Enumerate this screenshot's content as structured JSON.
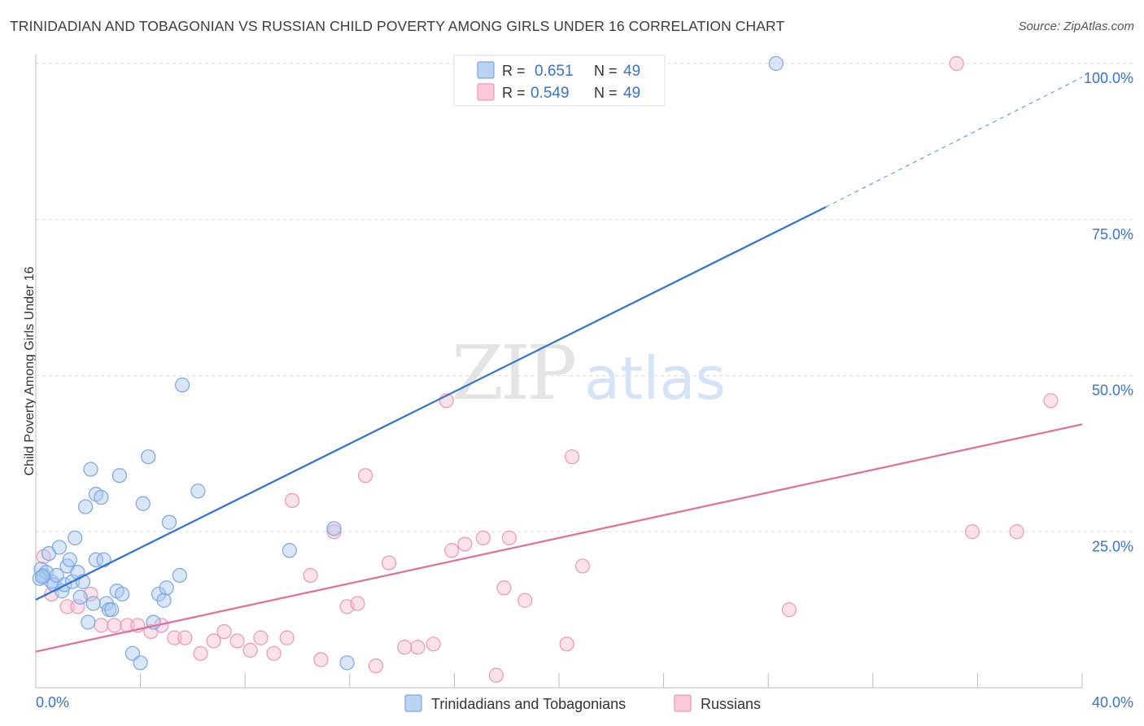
{
  "title": "TRINIDADIAN AND TOBAGONIAN VS RUSSIAN CHILD POVERTY AMONG GIRLS UNDER 16 CORRELATION CHART",
  "source": "Source: ZipAtlas.com",
  "watermark": {
    "zip": "ZIP",
    "atlas": "atlas"
  },
  "colors": {
    "blue_fill": "#a9c8f0",
    "blue_stroke": "#7aa6e0",
    "blue_line": "#2f72d0",
    "pink_fill": "#f6bcd0",
    "pink_stroke": "#ee96b6",
    "pink_line": "#e46c98",
    "tick_label": "#3a74c8",
    "grid": "#dddddd"
  },
  "legend": {
    "r_label": "R =",
    "n_label": "N =",
    "series": [
      {
        "r": "0.651",
        "n": "49"
      },
      {
        "r": "0.549",
        "n": "49"
      }
    ]
  },
  "chart_data": {
    "type": "scatter",
    "title": "TRINIDADIAN AND TOBAGONIAN VS RUSSIAN CHILD POVERTY AMONG GIRLS UNDER 16 CORRELATION CHART",
    "xlabel": "",
    "ylabel": "Child Poverty Among Girls Under 16",
    "xlim": [
      0,
      40
    ],
    "ylim": [
      0,
      100
    ],
    "x_tick_labels": [
      "0.0%",
      "40.0%"
    ],
    "y_ticks": [
      25,
      50,
      75,
      100
    ],
    "y_tick_labels": [
      "25.0%",
      "50.0%",
      "75.0%",
      "100.0%"
    ],
    "grid": true,
    "legend_position": "bottom",
    "series": [
      {
        "name": "Trinidadians and Tobagonians",
        "trend": {
          "x0": 0,
          "y0": 14.1,
          "x1": 30.2,
          "y1": 77.0,
          "dash_to_x": 40,
          "dash_to_y": 97.8
        },
        "points": [
          [
            0.2,
            19
          ],
          [
            0.3,
            18
          ],
          [
            0.4,
            18.5
          ],
          [
            0.5,
            21.5
          ],
          [
            0.6,
            17
          ],
          [
            0.7,
            16.5
          ],
          [
            0.8,
            18
          ],
          [
            0.9,
            22.5
          ],
          [
            1.0,
            15.5
          ],
          [
            1.1,
            16.5
          ],
          [
            1.2,
            19.5
          ],
          [
            1.3,
            20.5
          ],
          [
            1.4,
            17
          ],
          [
            1.5,
            24
          ],
          [
            1.6,
            18.5
          ],
          [
            1.7,
            14.5
          ],
          [
            1.8,
            17
          ],
          [
            1.9,
            29
          ],
          [
            2.0,
            10.5
          ],
          [
            2.1,
            35
          ],
          [
            2.2,
            13.5
          ],
          [
            2.3,
            31
          ],
          [
            2.3,
            20.5
          ],
          [
            2.5,
            30.5
          ],
          [
            2.6,
            20.5
          ],
          [
            2.7,
            13.5
          ],
          [
            2.8,
            12.5
          ],
          [
            2.9,
            12.5
          ],
          [
            3.1,
            15.5
          ],
          [
            3.2,
            34
          ],
          [
            3.3,
            15
          ],
          [
            3.7,
            5.5
          ],
          [
            4.0,
            4
          ],
          [
            4.1,
            29.5
          ],
          [
            4.3,
            37
          ],
          [
            4.5,
            10.5
          ],
          [
            4.7,
            15
          ],
          [
            4.9,
            14
          ],
          [
            5.0,
            16
          ],
          [
            5.1,
            26.5
          ],
          [
            5.5,
            18
          ],
          [
            5.6,
            48.5
          ],
          [
            6.2,
            31.5
          ],
          [
            9.7,
            22
          ],
          [
            11.4,
            25.5
          ],
          [
            11.9,
            4
          ],
          [
            28.3,
            100
          ],
          [
            0.15,
            17.5
          ],
          [
            0.25,
            17.8
          ]
        ]
      },
      {
        "name": "Russians",
        "trend": {
          "x0": 0,
          "y0": 5.8,
          "x1": 40,
          "y1": 42.2
        },
        "points": [
          [
            0.3,
            21
          ],
          [
            0.6,
            15
          ],
          [
            1.2,
            13
          ],
          [
            1.6,
            13
          ],
          [
            2.1,
            15
          ],
          [
            2.5,
            10
          ],
          [
            3.0,
            10
          ],
          [
            3.5,
            10
          ],
          [
            3.9,
            10
          ],
          [
            4.4,
            9
          ],
          [
            4.8,
            10
          ],
          [
            5.3,
            8
          ],
          [
            5.7,
            8
          ],
          [
            6.3,
            5.5
          ],
          [
            6.8,
            7.5
          ],
          [
            7.2,
            9
          ],
          [
            7.7,
            7.5
          ],
          [
            8.2,
            6
          ],
          [
            8.6,
            8
          ],
          [
            9.1,
            5.5
          ],
          [
            9.6,
            8
          ],
          [
            9.8,
            30
          ],
          [
            10.5,
            18
          ],
          [
            10.9,
            4.5
          ],
          [
            11.4,
            25
          ],
          [
            11.9,
            13
          ],
          [
            12.3,
            13.5
          ],
          [
            12.6,
            34
          ],
          [
            13.0,
            3.5
          ],
          [
            13.5,
            20
          ],
          [
            14.1,
            6.5
          ],
          [
            14.6,
            6.5
          ],
          [
            15.2,
            7
          ],
          [
            15.7,
            46
          ],
          [
            15.9,
            22
          ],
          [
            16.4,
            23
          ],
          [
            17.1,
            24
          ],
          [
            17.6,
            2
          ],
          [
            17.9,
            16
          ],
          [
            18.1,
            24
          ],
          [
            18.7,
            14
          ],
          [
            20.3,
            7
          ],
          [
            20.5,
            37
          ],
          [
            20.9,
            19.5
          ],
          [
            28.8,
            12.5
          ],
          [
            35.2,
            100
          ],
          [
            35.8,
            25
          ],
          [
            37.5,
            25
          ],
          [
            38.8,
            46
          ]
        ]
      }
    ]
  }
}
